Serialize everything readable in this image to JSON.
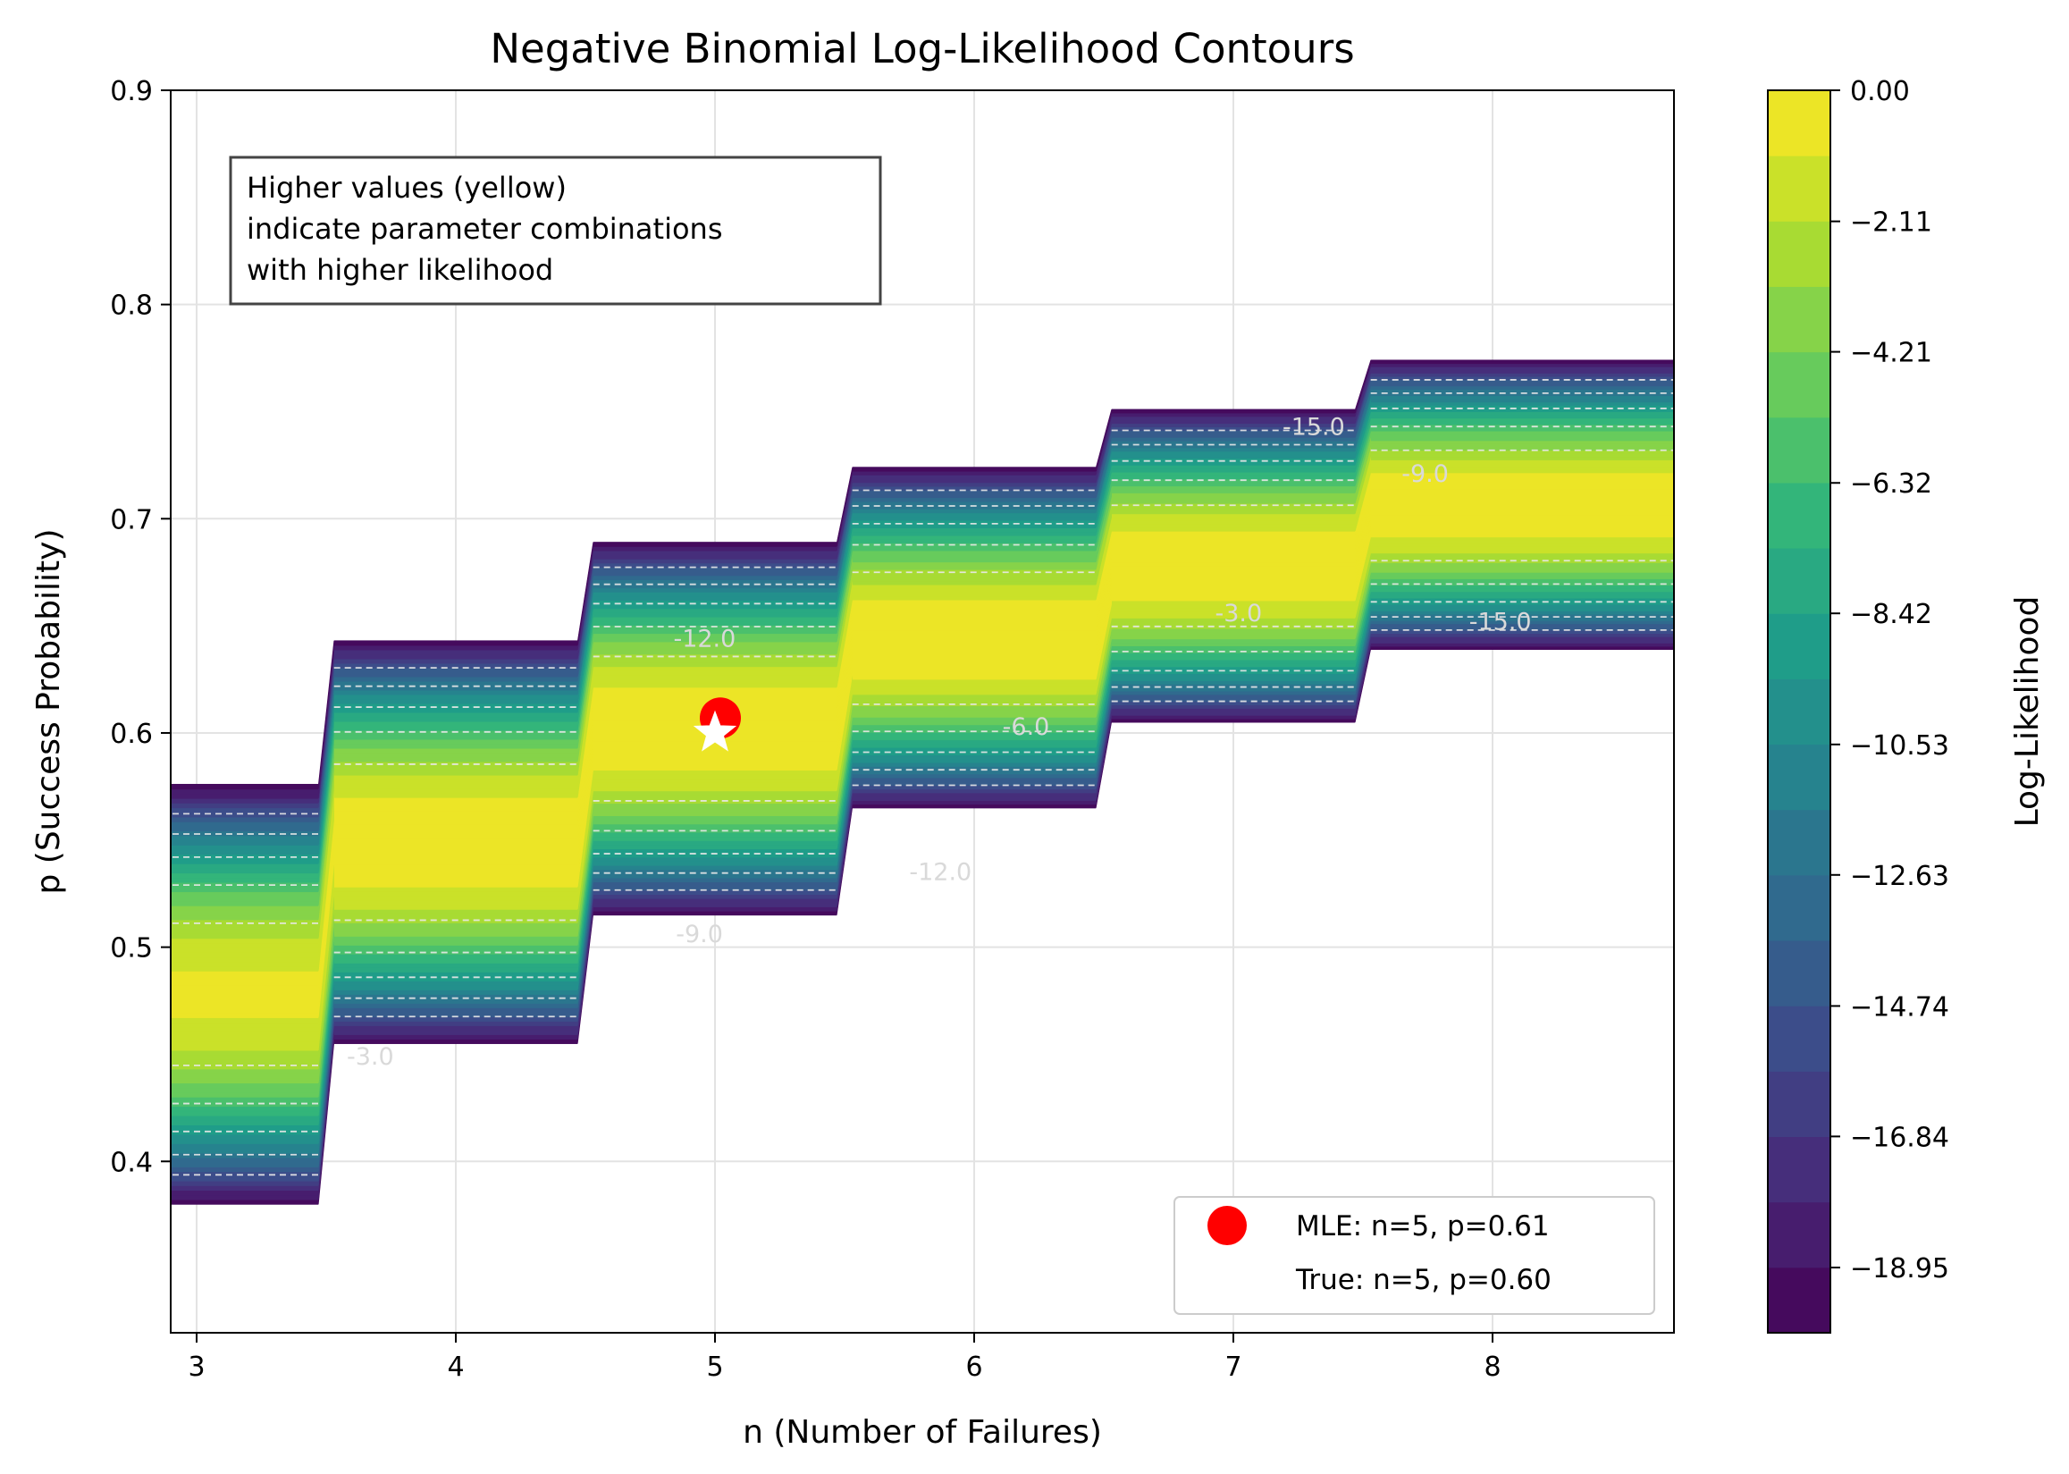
{
  "chart_data": {
    "type": "contour",
    "title": "Negative Binomial Log-Likelihood Contours",
    "xlabel": "n (Number of Failures)",
    "ylabel": "p (Success Probability)",
    "xlim": [
      2.9,
      8.7
    ],
    "ylim": [
      0.32,
      0.9
    ],
    "x_ticks": [
      3,
      4,
      5,
      6,
      7,
      8
    ],
    "y_ticks": [
      0.4,
      0.5,
      0.6,
      0.7,
      0.8,
      0.9
    ],
    "grid": true,
    "colormap": "viridis",
    "colorbar": {
      "label": "Log-Likelihood",
      "min": -20.0,
      "max": 0.0,
      "ticks": [
        "0.00",
        "−2.11",
        "−4.21",
        "−6.32",
        "−8.42",
        "−10.53",
        "−12.63",
        "−14.74",
        "−16.84",
        "−18.95"
      ]
    },
    "bands": [
      {
        "n": 3,
        "p_low": 0.38,
        "p_high": 0.576,
        "p_peak": 0.478,
        "peak": -0.8
      },
      {
        "n": 4,
        "p_low": 0.455,
        "p_high": 0.643,
        "p_peak": 0.549,
        "peak": 0.0
      },
      {
        "n": 5,
        "p_low": 0.515,
        "p_high": 0.689,
        "p_peak": 0.602,
        "peak": 0.0
      },
      {
        "n": 6,
        "p_low": 0.565,
        "p_high": 0.724,
        "p_peak": 0.644,
        "peak": 0.0
      },
      {
        "n": 7,
        "p_low": 0.605,
        "p_high": 0.751,
        "p_peak": 0.678,
        "peak": 0.0
      },
      {
        "n": 8,
        "p_low": 0.639,
        "p_high": 0.774,
        "p_peak": 0.706,
        "peak": -0.1
      }
    ],
    "contour_lines": [
      -3.0,
      -6.0,
      -9.0,
      -12.0,
      -15.0
    ],
    "contour_labels": [
      {
        "text": "-3.0",
        "x": 3.67,
        "y": 0.449
      },
      {
        "text": "-12.0",
        "x": 5.87,
        "y": 0.535
      },
      {
        "text": "-6.0",
        "x": 6.2,
        "y": 0.603
      },
      {
        "text": "-3.0",
        "x": 7.02,
        "y": 0.656
      },
      {
        "text": "-15.0",
        "x": 7.31,
        "y": 0.743
      },
      {
        "text": "-9.0",
        "x": 7.74,
        "y": 0.721
      },
      {
        "text": "-15.0",
        "x": 8.03,
        "y": 0.652
      },
      {
        "text": "-12.0",
        "x": 4.96,
        "y": 0.644
      },
      {
        "text": "-9.0",
        "x": 4.94,
        "y": 0.506
      }
    ],
    "mle": {
      "n": 5,
      "p": 0.607,
      "color": "#ff0000"
    },
    "true_point": {
      "n": 5,
      "p": 0.6,
      "color": "#ffffff"
    },
    "legend": {
      "position": "lower-right",
      "entries": [
        "MLE: n=5, p=0.61",
        "True: n=5, p=0.60"
      ]
    },
    "annotation": {
      "lines": [
        "Higher values (yellow)",
        "indicate parameter combinations",
        "with higher likelihood"
      ]
    }
  }
}
